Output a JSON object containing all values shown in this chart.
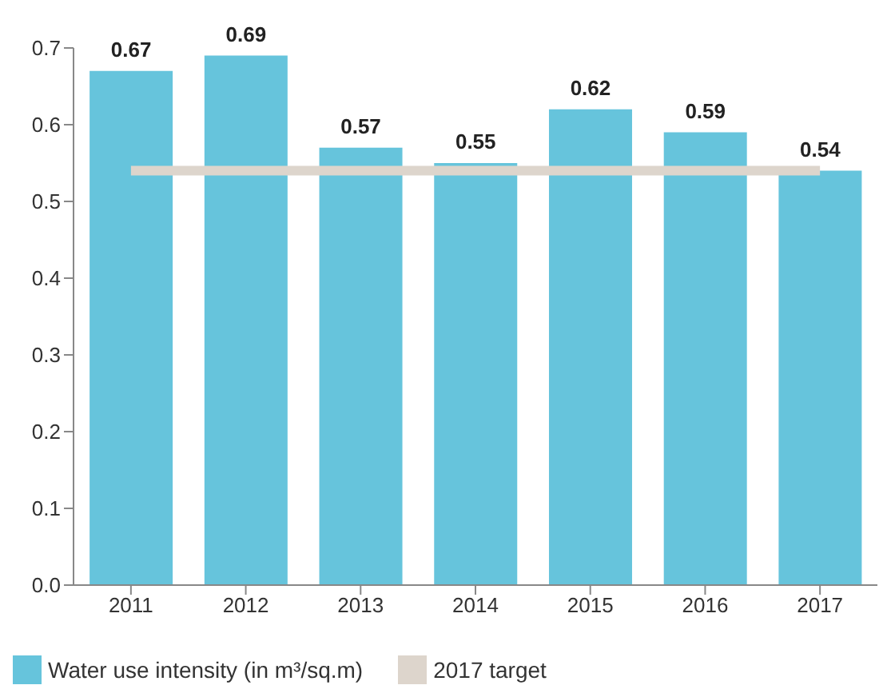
{
  "chart_data": {
    "type": "bar",
    "categories": [
      "2011",
      "2012",
      "2013",
      "2014",
      "2015",
      "2016",
      "2017"
    ],
    "series": [
      {
        "name": "Water use intensity (in m³/sq.m)",
        "color": "#66c4dc",
        "values": [
          0.67,
          0.69,
          0.57,
          0.55,
          0.62,
          0.59,
          0.54
        ],
        "value_labels": [
          "0.67",
          "0.69",
          "0.57",
          "0.55",
          "0.62",
          "0.59",
          "0.54"
        ]
      },
      {
        "name": "2017 target",
        "type": "line",
        "color": "#ddd5cc",
        "values": [
          0.54,
          0.54,
          0.54,
          0.54,
          0.54,
          0.54,
          0.54
        ]
      }
    ],
    "ylim": [
      0,
      0.7
    ],
    "yticks": [
      {
        "value": 0,
        "label": "0.0"
      },
      {
        "value": 0.1,
        "label": "0.1"
      },
      {
        "value": 0.2,
        "label": "0.2"
      },
      {
        "value": 0.3,
        "label": "0.3"
      },
      {
        "value": 0.4,
        "label": "0.4"
      },
      {
        "value": 0.5,
        "label": "0.5"
      },
      {
        "value": 0.6,
        "label": "0.6"
      },
      {
        "value": 0.7,
        "label": "0.7"
      }
    ],
    "grid": false,
    "legend": "bottom"
  }
}
